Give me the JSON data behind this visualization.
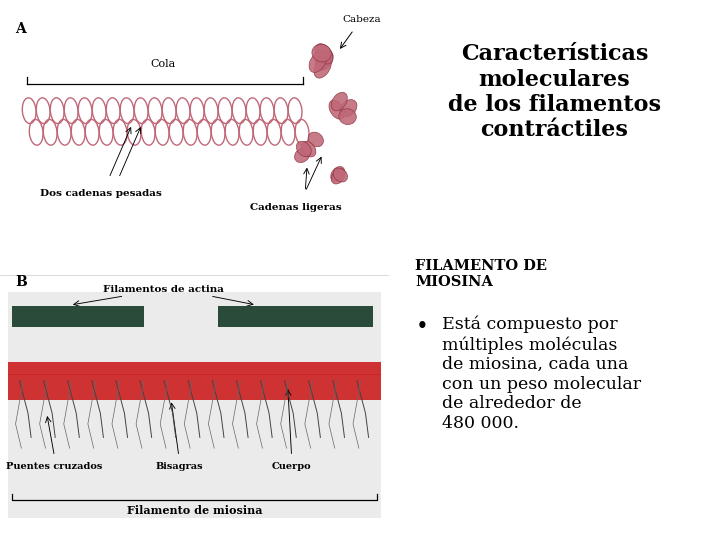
{
  "title": "Características\nmoleculares\nde los filamentos\ncontráctiles",
  "subtitle_bold": "FILAMENTO DE\nMIOSINA",
  "bullet_text": "Está compuesto por\nmúltiples moléculas\nde miosina, cada una\ncon un peso molecular\nde alrededor de\n480 000.",
  "bg_color": "#ffffff",
  "title_color": "#000000",
  "title_fontsize": 16,
  "subtitle_fontsize": 10.5,
  "bullet_fontsize": 12.5,
  "text_color": "#000000",
  "tail_color": "#c06878",
  "head_color": "#c06878",
  "head_edge_color": "#8b3040",
  "bar_dark_color": "#2a4a3a",
  "red_filament_color": "#cc2222",
  "crossbridge_color": "#444444",
  "label_A": "A",
  "label_B": "B",
  "label_cola": "Cola",
  "label_cabeza": "Cabeza",
  "label_dos_cadenas": "Dos cadenas pesadas",
  "label_cadenas_ligeras": "Cadenas ligeras",
  "label_filamentos_actina": "Filamentos de actina",
  "label_puentes": "Puentes cruzados",
  "label_bisagras": "Bisagras",
  "label_cuerpo": "Cuerpo",
  "label_filamento_miosina": "Filamento de miosina"
}
